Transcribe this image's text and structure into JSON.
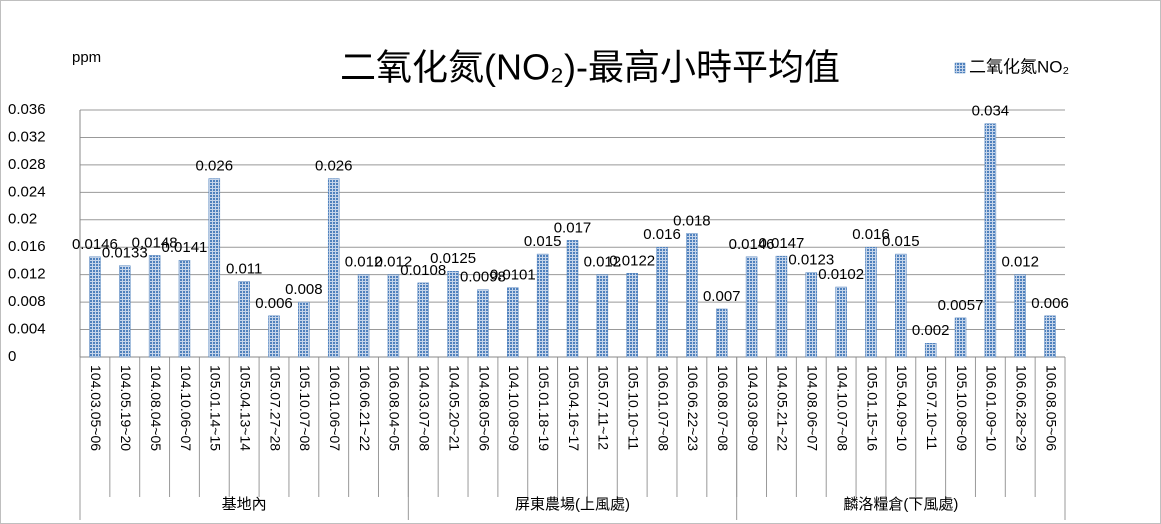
{
  "chart_data": {
    "type": "bar",
    "title": "二氧化氮(NO₂)-最高小時平均值",
    "y_label": "ppm",
    "categories": [
      "104.03.05~06",
      "104.05.19~20",
      "104.08.04~05",
      "104.10.06~07",
      "105.01.14~15",
      "105.04.13~14",
      "105.07.27~28",
      "105.10.07~08",
      "106.01.06~07",
      "106.06.21~22",
      "106.08.04~05",
      "104.03.07~08",
      "104.05.20~21",
      "104.08.05~06",
      "104.10.08~09",
      "105.01.18~19",
      "105.04.16~17",
      "105.07.11~12",
      "105.10.10~11",
      "106.01.07~08",
      "106.06.22~23",
      "106.08.07~08",
      "104.03.08~09",
      "104.05.21~22",
      "104.08.06~07",
      "104.10.07~08",
      "105.01.15~16",
      "105.04.09~10",
      "105.07.10~11",
      "105.10.08~09",
      "106.01.09~10",
      "106.06.28~29",
      "106.08.05~06"
    ],
    "group_labels": [
      "基地內",
      "屏東農場(上風處)",
      "麟洛糧倉(下風處)"
    ],
    "series": [
      {
        "name": "二氧化氮NO₂",
        "color": "#4f81bd",
        "values": [
          0.0146,
          0.0133,
          0.0148,
          0.0141,
          0.026,
          0.011,
          0.006,
          0.008,
          0.026,
          0.012,
          0.012,
          0.0108,
          0.0125,
          0.0098,
          0.0101,
          0.015,
          0.017,
          0.012,
          0.0122,
          0.016,
          0.018,
          0.007,
          0.0146,
          0.0147,
          0.0123,
          0.0102,
          0.016,
          0.015,
          0.002,
          0.0057,
          0.034,
          0.012,
          0.006
        ]
      }
    ],
    "ylim": [
      0,
      0.036
    ],
    "yticks": [
      0,
      0.004,
      0.008,
      0.012,
      0.016,
      0.02,
      0.024,
      0.028,
      0.032,
      0.036
    ],
    "grid": true,
    "legend": "top-right"
  }
}
